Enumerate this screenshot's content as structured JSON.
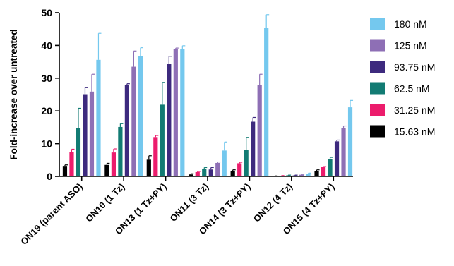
{
  "chart_data": {
    "type": "bar",
    "ylabel": "Fold-increase over untreated",
    "ylim": [
      0,
      50
    ],
    "yticks": [
      0,
      10,
      20,
      30,
      40,
      50
    ],
    "grid": false,
    "legend_position": "right",
    "categories": [
      "ON19 (parent ASO)",
      "ON10 (1 Tz)",
      "ON13 (1 Tz+PY)",
      "ON11 (3 Tz)",
      "ON14 (3 Tz+PY)",
      "ON12 (4 Tz)",
      "ON15 (4 Tz+PY)"
    ],
    "series": [
      {
        "name": "15.63 nM",
        "color": "#000000",
        "values": [
          3.2,
          3.5,
          5.1,
          0.6,
          1.7,
          0.1,
          1.6
        ],
        "errors": [
          0.3,
          0.5,
          1.2,
          0.2,
          0.3,
          0.05,
          0.4
        ]
      },
      {
        "name": "31.25 nM",
        "color": "#ec1c6c",
        "values": [
          7.5,
          7.3,
          12.0,
          1.3,
          4.0,
          0.2,
          2.8
        ],
        "errors": [
          0.8,
          1.1,
          0.5,
          0.2,
          0.3,
          0.05,
          0.2
        ]
      },
      {
        "name": "62.5 nM",
        "color": "#127b73",
        "values": [
          14.8,
          15.1,
          21.9,
          2.3,
          8.1,
          0.3,
          5.2
        ],
        "errors": [
          6.0,
          1.0,
          6.8,
          0.4,
          3.8,
          0.1,
          0.6
        ]
      },
      {
        "name": "93.75 nM",
        "color": "#3d2a7e",
        "values": [
          25.1,
          28.0,
          34.4,
          2.1,
          16.7,
          0.3,
          10.7
        ],
        "errors": [
          2.0,
          0.3,
          2.3,
          0.6,
          1.3,
          0.1,
          0.4
        ]
      },
      {
        "name": "125 nM",
        "color": "#8e6fb5",
        "values": [
          25.9,
          33.5,
          39.0,
          4.1,
          27.9,
          0.5,
          14.7
        ],
        "errors": [
          5.3,
          4.8,
          0.2,
          0.3,
          3.3,
          0.15,
          0.7
        ]
      },
      {
        "name": "180 nM",
        "color": "#74c8ee",
        "values": [
          35.6,
          36.8,
          38.9,
          7.9,
          45.4,
          0.8,
          21.1
        ],
        "errors": [
          8.1,
          2.5,
          1.0,
          2.6,
          4.0,
          0.2,
          2.1
        ]
      }
    ],
    "legend_order": [
      "180 nM",
      "125 nM",
      "93.75 nM",
      "62.5 nM",
      "31.25 nM",
      "15.63 nM"
    ]
  }
}
